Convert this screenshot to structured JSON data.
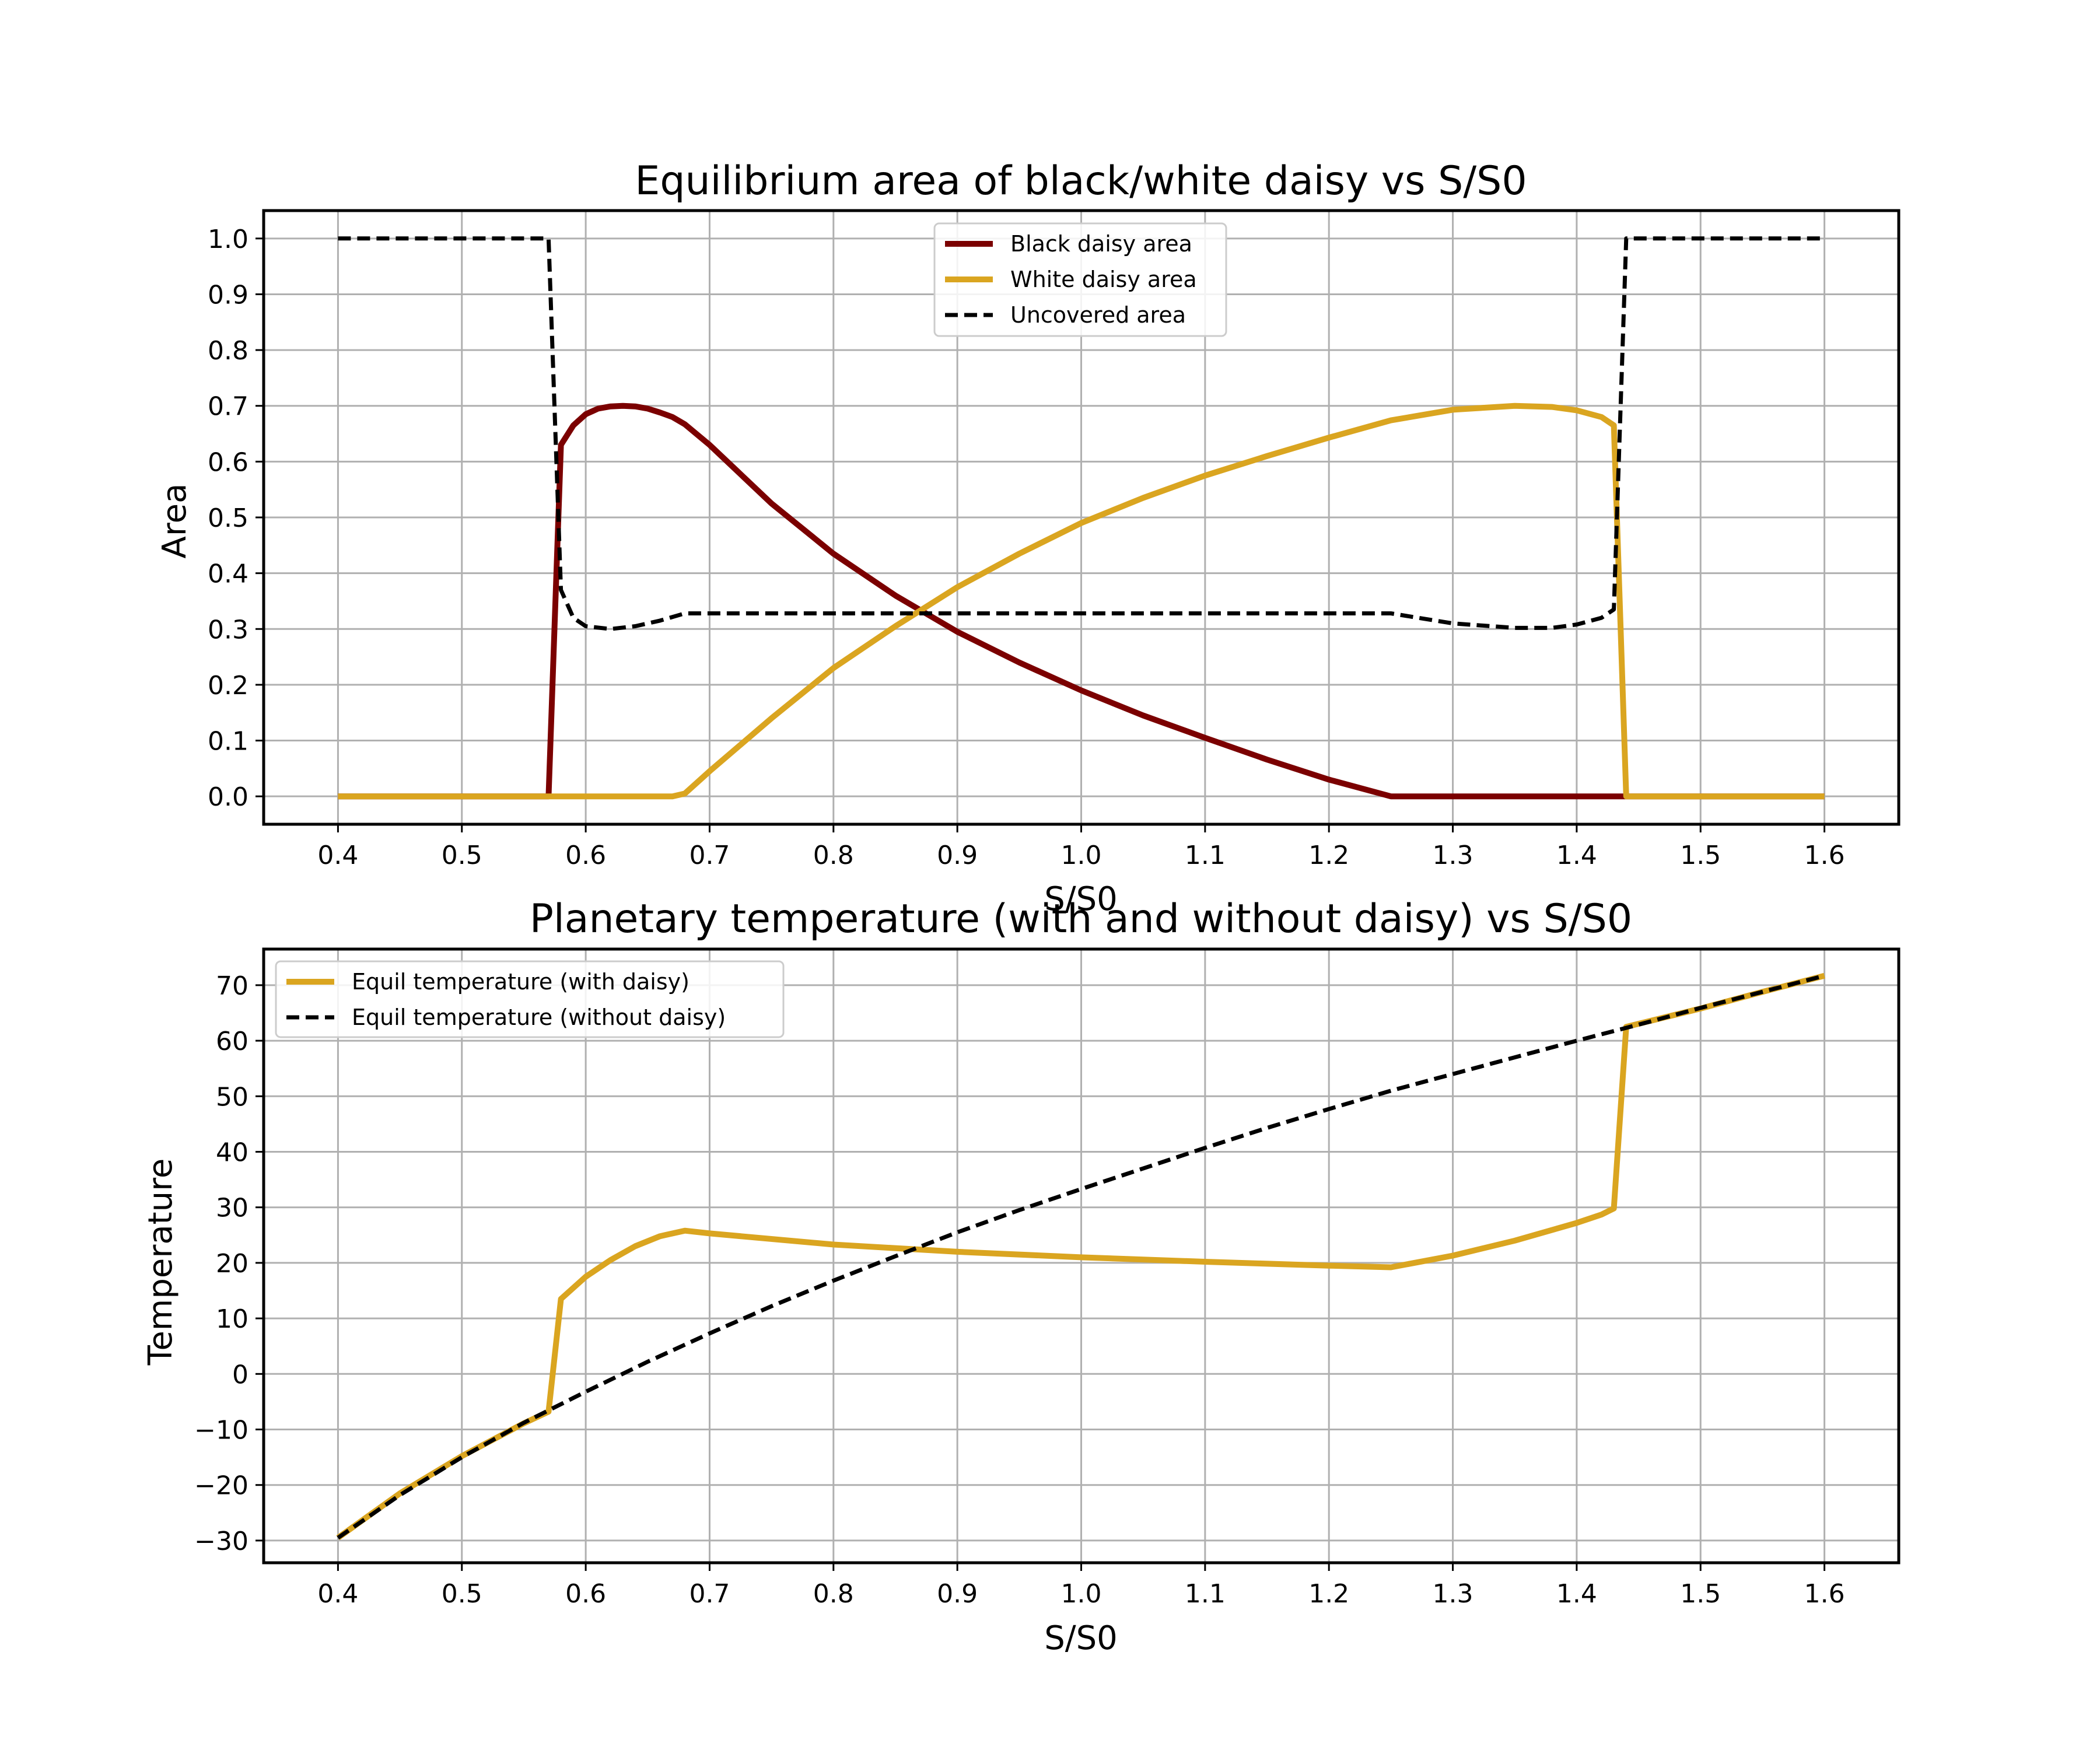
{
  "colors": {
    "black_daisy": "#7b0000",
    "white_daisy": "#daa520",
    "uncovered": "#000000",
    "grid": "#b0b0b0"
  },
  "chart_data": [
    {
      "type": "line",
      "title": "Equilibrium area of black/white daisy vs S/S0",
      "xlabel": "S/S0",
      "ylabel": "Area",
      "xlim": [
        0.34,
        1.66
      ],
      "ylim": [
        -0.05,
        1.05
      ],
      "xticks": [
        0.4,
        0.5,
        0.6,
        0.7,
        0.8,
        0.9,
        1.0,
        1.1,
        1.2,
        1.3,
        1.4,
        1.5,
        1.6
      ],
      "xtick_labels": [
        "0.4",
        "0.5",
        "0.6",
        "0.7",
        "0.8",
        "0.9",
        "1.0",
        "1.1",
        "1.2",
        "1.3",
        "1.4",
        "1.5",
        "1.6"
      ],
      "yticks": [
        0.0,
        0.1,
        0.2,
        0.3,
        0.4,
        0.5,
        0.6,
        0.7,
        0.8,
        0.9,
        1.0
      ],
      "ytick_labels": [
        "0.0",
        "0.1",
        "0.2",
        "0.3",
        "0.4",
        "0.5",
        "0.6",
        "0.7",
        "0.8",
        "0.9",
        "1.0"
      ],
      "grid": true,
      "legend_position": "top-center",
      "series": [
        {
          "name": "Black daisy area",
          "color": "#7b0000",
          "dash": "solid",
          "x": [
            0.4,
            0.5,
            0.57,
            0.58,
            0.59,
            0.6,
            0.61,
            0.62,
            0.63,
            0.64,
            0.65,
            0.66,
            0.67,
            0.68,
            0.7,
            0.75,
            0.8,
            0.85,
            0.9,
            0.95,
            1.0,
            1.05,
            1.1,
            1.15,
            1.2,
            1.25,
            1.3,
            1.4,
            1.44,
            1.5,
            1.6
          ],
          "y": [
            0.0,
            0.0,
            0.0,
            0.63,
            0.665,
            0.685,
            0.695,
            0.699,
            0.7,
            0.699,
            0.695,
            0.688,
            0.68,
            0.667,
            0.63,
            0.525,
            0.435,
            0.36,
            0.295,
            0.24,
            0.19,
            0.145,
            0.105,
            0.066,
            0.03,
            0.0,
            0.0,
            0.0,
            0.0,
            0.0,
            0.0
          ]
        },
        {
          "name": "White daisy area",
          "color": "#daa520",
          "dash": "solid",
          "x": [
            0.4,
            0.5,
            0.6,
            0.67,
            0.68,
            0.7,
            0.75,
            0.8,
            0.85,
            0.9,
            0.95,
            1.0,
            1.05,
            1.1,
            1.15,
            1.2,
            1.25,
            1.3,
            1.35,
            1.38,
            1.4,
            1.42,
            1.43,
            1.44,
            1.5,
            1.6
          ],
          "y": [
            0.0,
            0.0,
            0.0,
            0.0,
            0.005,
            0.045,
            0.14,
            0.23,
            0.305,
            0.375,
            0.435,
            0.49,
            0.535,
            0.575,
            0.61,
            0.643,
            0.674,
            0.693,
            0.7,
            0.698,
            0.692,
            0.68,
            0.665,
            0.0,
            0.0,
            0.0
          ]
        },
        {
          "name": "Uncovered area",
          "color": "#000000",
          "dash": "dashed",
          "x": [
            0.4,
            0.5,
            0.57,
            0.58,
            0.59,
            0.6,
            0.62,
            0.64,
            0.66,
            0.68,
            0.7,
            0.8,
            0.9,
            1.0,
            1.1,
            1.2,
            1.25,
            1.3,
            1.35,
            1.38,
            1.4,
            1.42,
            1.43,
            1.44,
            1.5,
            1.6
          ],
          "y": [
            1.0,
            1.0,
            1.0,
            0.37,
            0.32,
            0.305,
            0.3,
            0.305,
            0.315,
            0.328,
            0.328,
            0.328,
            0.328,
            0.328,
            0.328,
            0.328,
            0.328,
            0.31,
            0.302,
            0.302,
            0.308,
            0.32,
            0.335,
            1.0,
            1.0,
            1.0
          ]
        }
      ]
    },
    {
      "type": "line",
      "title": "Planetary temperature (with and without daisy) vs S/S0",
      "xlabel": "S/S0",
      "ylabel": "Temperature",
      "xlim": [
        0.34,
        1.66
      ],
      "ylim": [
        -34,
        76.5
      ],
      "xticks": [
        0.4,
        0.5,
        0.6,
        0.7,
        0.8,
        0.9,
        1.0,
        1.1,
        1.2,
        1.3,
        1.4,
        1.5,
        1.6
      ],
      "xtick_labels": [
        "0.4",
        "0.5",
        "0.6",
        "0.7",
        "0.8",
        "0.9",
        "1.0",
        "1.1",
        "1.2",
        "1.3",
        "1.4",
        "1.5",
        "1.6"
      ],
      "yticks": [
        -30,
        -20,
        -10,
        0,
        10,
        20,
        30,
        40,
        50,
        60,
        70
      ],
      "ytick_labels": [
        "−30",
        "−20",
        "−10",
        "0",
        "10",
        "20",
        "30",
        "40",
        "50",
        "60",
        "70"
      ],
      "grid": true,
      "legend_position": "top-left",
      "series": [
        {
          "name": "Equil temperature (with daisy)",
          "color": "#daa520",
          "dash": "solid",
          "x": [
            0.4,
            0.45,
            0.5,
            0.55,
            0.57,
            0.58,
            0.6,
            0.62,
            0.64,
            0.66,
            0.68,
            0.7,
            0.8,
            0.9,
            1.0,
            1.1,
            1.2,
            1.25,
            1.3,
            1.35,
            1.4,
            1.42,
            1.43,
            1.44,
            1.5,
            1.55,
            1.6
          ],
          "y": [
            -29.5,
            -21.5,
            -14.8,
            -8.9,
            -6.8,
            13.5,
            17.5,
            20.5,
            23.0,
            24.8,
            25.8,
            25.3,
            23.3,
            22.0,
            21.0,
            20.2,
            19.5,
            19.2,
            21.3,
            24.0,
            27.2,
            28.7,
            29.8,
            62.5,
            65.8,
            68.8,
            71.7
          ]
        },
        {
          "name": "Equil temperature (without daisy)",
          "color": "#000000",
          "dash": "dashed",
          "x": [
            0.4,
            0.45,
            0.5,
            0.55,
            0.6,
            0.65,
            0.7,
            0.75,
            0.8,
            0.85,
            0.9,
            0.95,
            1.0,
            1.05,
            1.1,
            1.15,
            1.2,
            1.25,
            1.3,
            1.35,
            1.4,
            1.45,
            1.5,
            1.55,
            1.6
          ],
          "y": [
            -29.5,
            -21.8,
            -15.0,
            -8.8,
            -3.2,
            2.2,
            7.3,
            12.2,
            16.8,
            21.2,
            25.5,
            29.5,
            33.3,
            37.0,
            40.7,
            44.3,
            47.7,
            51.0,
            54.0,
            57.0,
            60.0,
            62.9,
            65.9,
            68.8,
            71.7
          ]
        }
      ]
    }
  ]
}
